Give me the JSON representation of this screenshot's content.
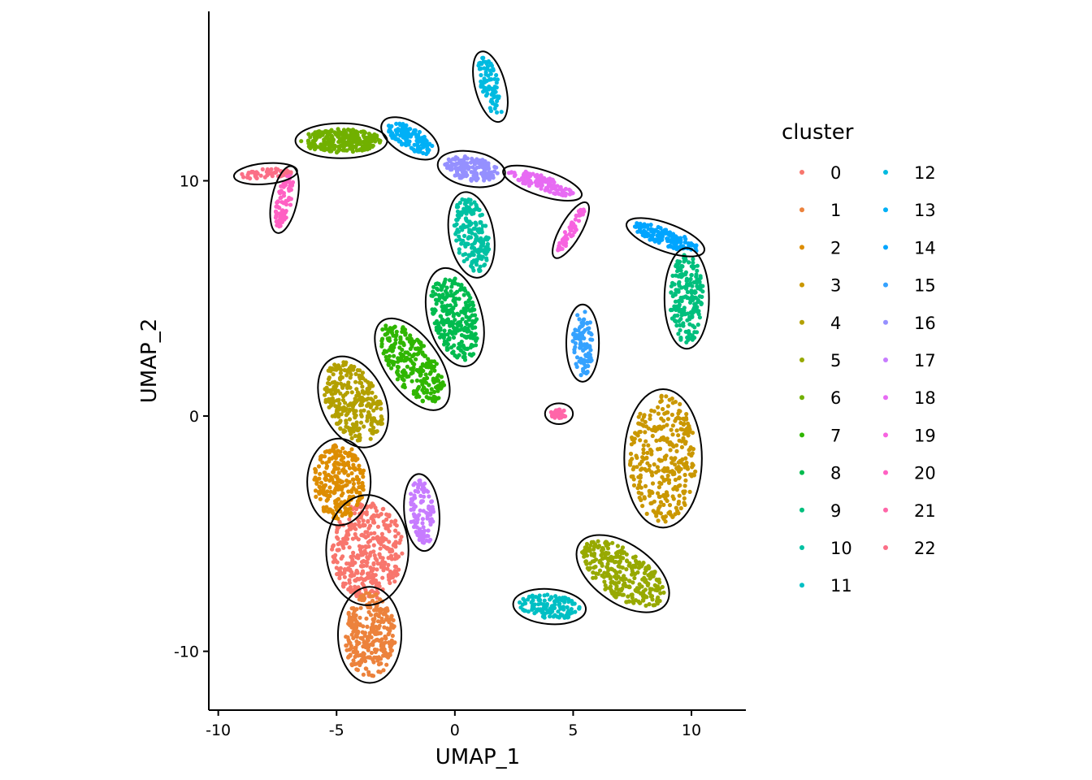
{
  "chart_data": {
    "type": "scatter",
    "title": "",
    "xlabel": "UMAP_1",
    "ylabel": "UMAP_2",
    "xlim": [
      -10.4,
      12.3
    ],
    "ylim": [
      -12.5,
      17.2
    ],
    "x_ticks": [
      -10,
      -5,
      0,
      5,
      10
    ],
    "y_ticks": [
      -10,
      0,
      10
    ],
    "x_tick_labels": [
      "-10",
      "-5",
      "0",
      "5",
      "10"
    ],
    "y_tick_labels": [
      "-10",
      "0",
      "10"
    ],
    "grid": false,
    "legend": {
      "title": "cluster",
      "placement": "right",
      "columns": 2
    },
    "series": [
      {
        "name": "0",
        "color": "#F8766D",
        "region": {
          "cx": -3.7,
          "cy": -5.7,
          "rx": 1.5,
          "ry": 2.1,
          "angle": 0,
          "n": 380
        }
      },
      {
        "name": "1",
        "color": "#EC823C",
        "region": {
          "cx": -3.6,
          "cy": -9.3,
          "rx": 1.1,
          "ry": 1.8,
          "angle": 0,
          "n": 300
        }
      },
      {
        "name": "2",
        "color": "#DD8D00",
        "region": {
          "cx": -4.9,
          "cy": -2.8,
          "rx": 1.1,
          "ry": 1.6,
          "angle": 0,
          "n": 260
        }
      },
      {
        "name": "3",
        "color": "#CA9700",
        "region": {
          "cx": 8.8,
          "cy": -1.8,
          "rx": 1.4,
          "ry": 2.7,
          "angle": 0,
          "n": 320
        }
      },
      {
        "name": "4",
        "color": "#B3A000",
        "region": {
          "cx": -4.3,
          "cy": 0.6,
          "rx": 1.1,
          "ry": 1.8,
          "angle": 25,
          "n": 280
        }
      },
      {
        "name": "5",
        "color": "#97A900",
        "region": {
          "cx": 7.1,
          "cy": -6.7,
          "rx": 1.0,
          "ry": 2.0,
          "angle": 55,
          "n": 300
        }
      },
      {
        "name": "6",
        "color": "#71B000",
        "region": {
          "cx": -4.8,
          "cy": 11.7,
          "rx": 1.7,
          "ry": 0.5,
          "angle": 0,
          "n": 280
        }
      },
      {
        "name": "7",
        "color": "#2FB600",
        "region": {
          "cx": -1.8,
          "cy": 2.2,
          "rx": 0.9,
          "ry": 2.0,
          "angle": 35,
          "n": 250
        }
      },
      {
        "name": "8",
        "color": "#00BB4E",
        "region": {
          "cx": 0.0,
          "cy": 4.2,
          "rx": 0.9,
          "ry": 1.9,
          "angle": 15,
          "n": 250
        }
      },
      {
        "name": "9",
        "color": "#00BF7D",
        "region": {
          "cx": 9.8,
          "cy": 5.0,
          "rx": 0.7,
          "ry": 1.9,
          "angle": 0,
          "n": 200
        }
      },
      {
        "name": "10",
        "color": "#00C1A3",
        "region": {
          "cx": 0.7,
          "cy": 7.7,
          "rx": 0.7,
          "ry": 1.6,
          "angle": 10,
          "n": 180
        }
      },
      {
        "name": "11",
        "color": "#00BFC4",
        "region": {
          "cx": 4.0,
          "cy": -8.1,
          "rx": 1.3,
          "ry": 0.5,
          "angle": -5,
          "n": 110
        }
      },
      {
        "name": "12",
        "color": "#00BAE0",
        "region": {
          "cx": 1.5,
          "cy": 14.0,
          "rx": 0.4,
          "ry": 1.3,
          "angle": 15,
          "n": 80
        }
      },
      {
        "name": "13",
        "color": "#00B0F6",
        "region": {
          "cx": -1.9,
          "cy": 11.8,
          "rx": 1.1,
          "ry": 0.45,
          "angle": -30,
          "n": 130
        }
      },
      {
        "name": "14",
        "color": "#00A5FF",
        "region": {
          "cx": 8.9,
          "cy": 7.6,
          "rx": 1.5,
          "ry": 0.35,
          "angle": -20,
          "n": 130
        }
      },
      {
        "name": "15",
        "color": "#35A2FF",
        "region": {
          "cx": 5.4,
          "cy": 3.1,
          "rx": 0.45,
          "ry": 1.4,
          "angle": 0,
          "n": 100
        }
      },
      {
        "name": "16",
        "color": "#9590FF",
        "region": {
          "cx": 0.7,
          "cy": 10.5,
          "rx": 1.2,
          "ry": 0.5,
          "angle": -10,
          "n": 140
        }
      },
      {
        "name": "17",
        "color": "#C77CFF",
        "region": {
          "cx": -1.4,
          "cy": -4.1,
          "rx": 0.5,
          "ry": 1.4,
          "angle": 5,
          "n": 110
        }
      },
      {
        "name": "18",
        "color": "#E76BF3",
        "region": {
          "cx": 3.7,
          "cy": 9.9,
          "rx": 1.5,
          "ry": 0.3,
          "angle": -18,
          "n": 110
        }
      },
      {
        "name": "19",
        "color": "#F763E0",
        "region": {
          "cx": 4.9,
          "cy": 7.9,
          "rx": 1.1,
          "ry": 0.2,
          "angle": 60,
          "n": 60
        }
      },
      {
        "name": "20",
        "color": "#FF61C3",
        "region": {
          "cx": -7.2,
          "cy": 9.2,
          "rx": 1.2,
          "ry": 0.3,
          "angle": 78,
          "n": 80
        }
      },
      {
        "name": "21",
        "color": "#FF66A8",
        "region": {
          "cx": 4.4,
          "cy": 0.1,
          "rx": 0.35,
          "ry": 0.2,
          "angle": 0,
          "n": 30
        }
      },
      {
        "name": "22",
        "color": "#FB6F87",
        "region": {
          "cx": -8.0,
          "cy": 10.3,
          "rx": 1.1,
          "ry": 0.2,
          "angle": 5,
          "n": 50
        }
      }
    ]
  }
}
